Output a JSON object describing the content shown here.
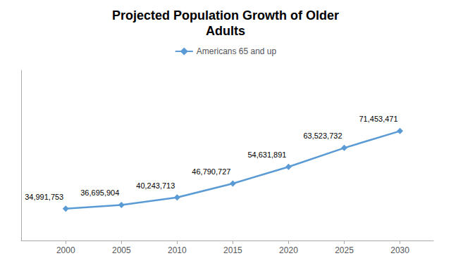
{
  "chart_data": {
    "type": "line",
    "title": "Projected Population Growth of Older\nAdults",
    "x": [
      2000,
      2005,
      2010,
      2015,
      2020,
      2025,
      2030
    ],
    "series": [
      {
        "name": "Americans 65 and up",
        "color": "#5b9bd5",
        "marker": "diamond",
        "values": [
          34991753,
          36695904,
          40243713,
          46790727,
          54631891,
          63523732,
          71453471
        ],
        "value_labels": [
          "34,991,753",
          "36,695,904",
          "40,243,713",
          "46,790,727",
          "54,631,891",
          "63,523,732",
          "71,453,471"
        ]
      }
    ],
    "xlim": [
      1996,
      2033
    ],
    "xticks": [
      2000,
      2005,
      2010,
      2015,
      2020,
      2025,
      2030
    ],
    "ylim": [
      20000000,
      100000000
    ],
    "data_labels": true,
    "tick_labels": "x",
    "grid": false,
    "legend": "top"
  }
}
